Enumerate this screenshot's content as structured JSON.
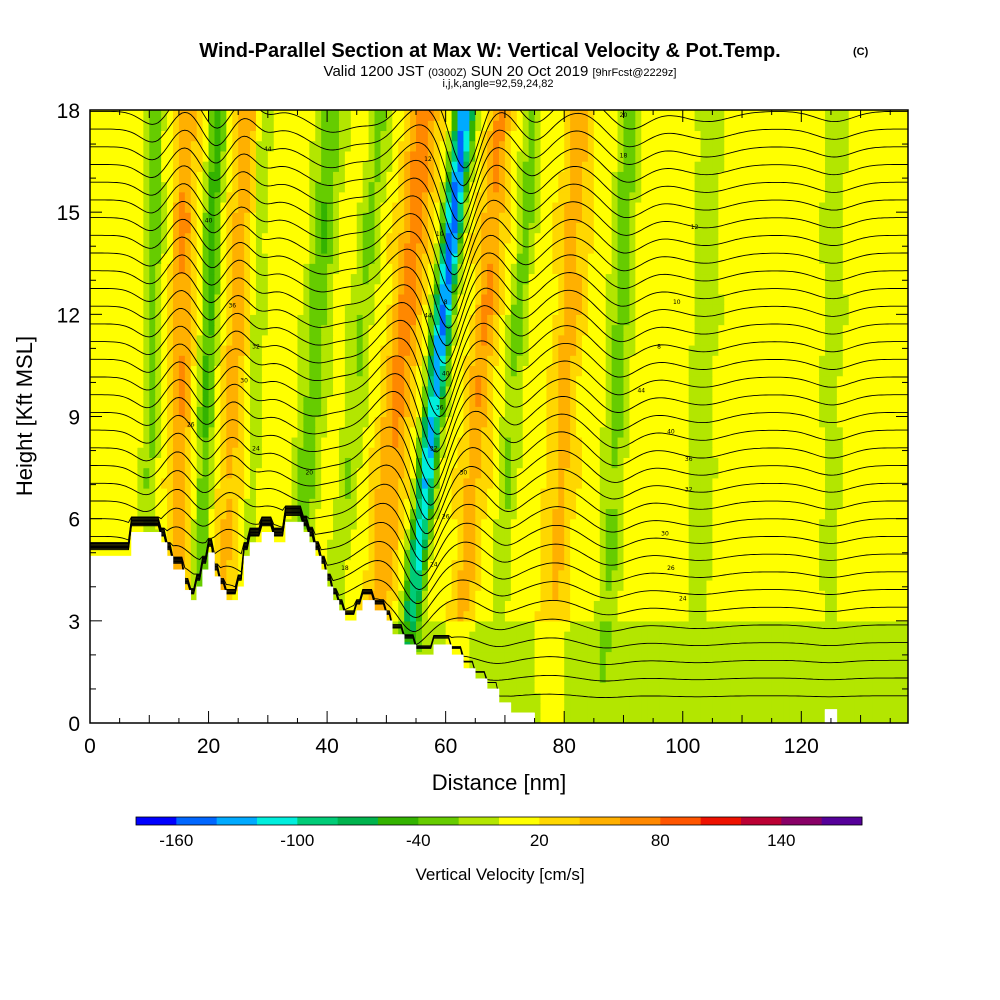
{
  "chart_data": {
    "type": "heatmap",
    "title": "Wind-Parallel Section at Max W: Vertical Velocity & Pot.Temp.",
    "title_unit": "(C)",
    "subtitle_main": "Valid 1200 JST",
    "subtitle_z": "(0300Z)",
    "subtitle_date": "SUN 20 Oct 2019",
    "subtitle_fcst": "[9hrFcst@2229z]",
    "indices_label": "i,j,k,angle=92,59,24,82",
    "xlabel": "Distance [nm]",
    "ylabel": "Height [Kft MSL]",
    "xlim": [
      0,
      138
    ],
    "ylim": [
      0,
      18
    ],
    "x_ticks": [
      0,
      20,
      40,
      60,
      80,
      100,
      120
    ],
    "y_ticks": [
      0,
      3,
      6,
      9,
      12,
      15,
      18
    ],
    "colorbar": {
      "label": "Vertical Velocity [cm/s]",
      "min": -180,
      "max": 180,
      "step": 20,
      "tick_values": [
        -160,
        -100,
        -40,
        20,
        80,
        140
      ],
      "tick_labels": [
        "-160",
        "-100",
        "-40",
        "20",
        "80",
        "140"
      ],
      "colors": [
        "#0000ff",
        "#0066ff",
        "#00aaff",
        "#00eedd",
        "#00cc77",
        "#00b34d",
        "#33b300",
        "#66cc00",
        "#b3e600",
        "#ffff00",
        "#ffd700",
        "#ffb000",
        "#ff8800",
        "#ff5500",
        "#ee1100",
        "#bb0033",
        "#880066",
        "#550099"
      ]
    },
    "terrain_kft": [
      [
        0,
        4.9
      ],
      [
        7,
        4.9
      ],
      [
        7,
        5.6
      ],
      [
        12,
        5.6
      ],
      [
        12,
        5.3
      ],
      [
        13,
        5.3
      ],
      [
        13,
        4.9
      ],
      [
        14,
        4.9
      ],
      [
        14,
        4.5
      ],
      [
        16,
        4.5
      ],
      [
        16,
        3.9
      ],
      [
        17,
        3.9
      ],
      [
        17,
        3.6
      ],
      [
        18,
        3.6
      ],
      [
        18,
        4.0
      ],
      [
        19,
        4.0
      ],
      [
        19,
        4.5
      ],
      [
        20,
        4.5
      ],
      [
        20,
        5.0
      ],
      [
        21,
        5.0
      ],
      [
        21,
        4.3
      ],
      [
        22,
        4.3
      ],
      [
        22,
        3.9
      ],
      [
        23,
        3.9
      ],
      [
        23,
        3.6
      ],
      [
        25,
        3.6
      ],
      [
        25,
        4.0
      ],
      [
        26,
        4.0
      ],
      [
        26,
        4.9
      ],
      [
        27,
        4.9
      ],
      [
        27,
        5.3
      ],
      [
        29,
        5.3
      ],
      [
        29,
        5.6
      ],
      [
        31,
        5.6
      ],
      [
        31,
        5.3
      ],
      [
        33,
        5.3
      ],
      [
        33,
        5.9
      ],
      [
        36,
        5.9
      ],
      [
        36,
        5.6
      ],
      [
        37,
        5.6
      ],
      [
        37,
        5.3
      ],
      [
        38,
        5.3
      ],
      [
        38,
        4.9
      ],
      [
        39,
        4.9
      ],
      [
        39,
        4.5
      ],
      [
        40,
        4.5
      ],
      [
        40,
        4.0
      ],
      [
        41,
        4.0
      ],
      [
        41,
        3.6
      ],
      [
        42,
        3.6
      ],
      [
        42,
        3.3
      ],
      [
        43,
        3.3
      ],
      [
        43,
        3.0
      ],
      [
        45,
        3.0
      ],
      [
        45,
        3.3
      ],
      [
        46,
        3.3
      ],
      [
        46,
        3.6
      ],
      [
        48,
        3.6
      ],
      [
        48,
        3.3
      ],
      [
        50,
        3.3
      ],
      [
        50,
        3.0
      ],
      [
        51,
        3.0
      ],
      [
        51,
        2.6
      ],
      [
        53,
        2.6
      ],
      [
        53,
        2.3
      ],
      [
        55,
        2.3
      ],
      [
        55,
        2.0
      ],
      [
        58,
        2.0
      ],
      [
        58,
        2.3
      ],
      [
        61,
        2.3
      ],
      [
        61,
        2.0
      ],
      [
        63,
        2.0
      ],
      [
        63,
        1.6
      ],
      [
        65,
        1.6
      ],
      [
        65,
        1.3
      ],
      [
        67,
        1.3
      ],
      [
        67,
        1.0
      ],
      [
        69,
        1.0
      ],
      [
        69,
        0.6
      ],
      [
        71,
        0.6
      ],
      [
        71,
        0.3
      ],
      [
        75,
        0.3
      ],
      [
        75,
        0.0
      ],
      [
        124,
        0.0
      ],
      [
        124,
        0.4
      ],
      [
        126,
        0.4
      ],
      [
        126,
        0.0
      ],
      [
        138,
        0.0
      ]
    ],
    "vertical_velocity_bands": [
      {
        "center_x": 10,
        "half_width": 1.5,
        "max_w": -40,
        "tilt": 0.1
      },
      {
        "center_x": 15,
        "half_width": 1.8,
        "max_w": 50,
        "tilt": 0.1
      },
      {
        "center_x": 19,
        "half_width": 1.5,
        "max_w": -60,
        "tilt": 0.2
      },
      {
        "center_x": 23,
        "half_width": 2.0,
        "max_w": 40,
        "tilt": 0.3
      },
      {
        "center_x": 27,
        "half_width": 1.2,
        "max_w": -30,
        "tilt": 0.2
      },
      {
        "center_x": 36,
        "half_width": 2.2,
        "max_w": -50,
        "tilt": 0.4
      },
      {
        "center_x": 43,
        "half_width": 2.0,
        "max_w": -35,
        "tilt": 0.5
      },
      {
        "center_x": 50,
        "half_width": 2.5,
        "max_w": 60,
        "tilt": 0.55
      },
      {
        "center_x": 56,
        "half_width": 1.6,
        "max_w": -160,
        "tilt": 0.6
      },
      {
        "center_x": 64,
        "half_width": 2.0,
        "max_w": 50,
        "tilt": 0.45
      },
      {
        "center_x": 70,
        "half_width": 1.6,
        "max_w": -40,
        "tilt": 0.4
      },
      {
        "center_x": 79,
        "half_width": 2.2,
        "max_w": 40,
        "tilt": 0.3
      },
      {
        "center_x": 88,
        "half_width": 2.0,
        "max_w": -45,
        "tilt": 0.25
      },
      {
        "center_x": 103,
        "half_width": 2.5,
        "max_w": -25,
        "tilt": 0.1
      },
      {
        "center_x": 125,
        "half_width": 2.0,
        "max_w": -25,
        "tilt": 0.05
      }
    ],
    "contour_labels": [
      "44",
      "40",
      "36",
      "32",
      "30",
      "26",
      "24",
      "20",
      "18",
      "12",
      "10",
      "8"
    ]
  }
}
